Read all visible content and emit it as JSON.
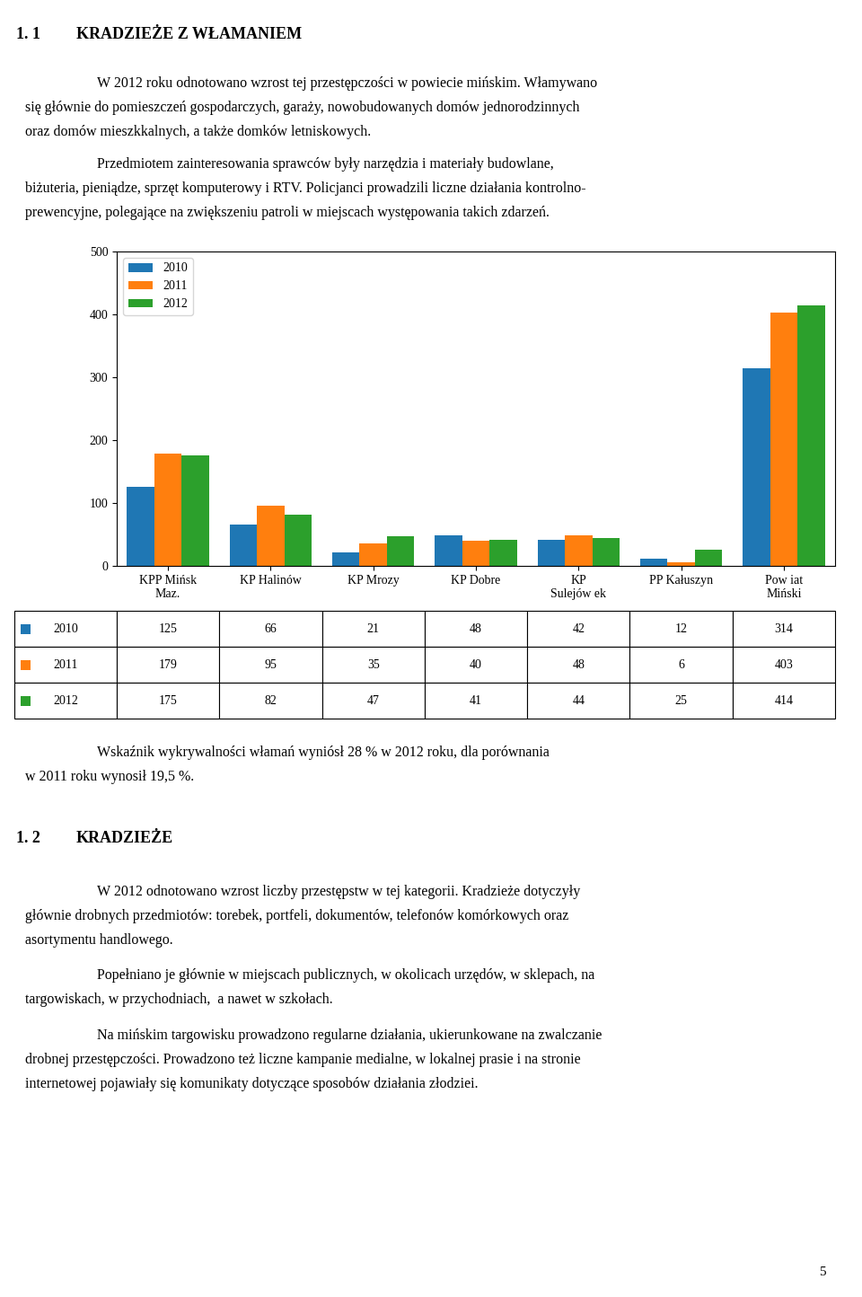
{
  "chart_data": {
    "type": "bar",
    "categories": [
      "KPP Mińsk\nMaz.",
      "KP Halinów",
      "KP Mrozy",
      "KP Dobre",
      "KP\nSulejów ek",
      "PP Kałuszyn",
      "Pow iat\nMiński"
    ],
    "series": [
      {
        "name": "2010",
        "values": [
          125,
          66,
          21,
          48,
          42,
          12,
          314
        ]
      },
      {
        "name": "2011",
        "values": [
          179,
          95,
          35,
          40,
          48,
          6,
          403
        ]
      },
      {
        "name": "2012",
        "values": [
          175,
          82,
          47,
          41,
          44,
          25,
          414
        ]
      }
    ],
    "ylim": [
      0,
      500
    ],
    "yticks": [
      0,
      100,
      200,
      300,
      400,
      500
    ],
    "grid": false,
    "legend": "upper left",
    "annotations": [
      "1. 1",
      "KRADZIEŻE Z WŁAMANIEM",
      "W 2012 roku odnotowano wzrost tej przestępczości w powiecie mińskim. Włamywano",
      "się głównie do pomieszczeń gospodarczych, garaży, nowobudowanych domów jednorodzinnych",
      "oraz domów mieszkkalnych, a także domków letniskowych.",
      "Przedmiotem zainteresowania sprawców były narzędzia i materiały budowlane,",
      "biżuteria, pieniądze, sprzęt komputerowy i RTV. Policjanci prowadzili liczne działania kontrolno-",
      "prewencyjne, polegające na zwiększeniu patroli w miejscach występowania takich zdarzeń.",
      "Wskaźnik wykrywalności włamań wyniósł 28 % w 2012 roku, dla porównania",
      "w 2011 roku wynosił 19,5 %.",
      "1. 2",
      "KRADZIEŻE",
      "W 2012 odnotowano wzrost liczby przestępstw w tej kategorii. Kradzieże dotyczyły",
      "głównie drobnych przedmiotów: torebek, portfeli, dokumentów, telefonów komórkowych oraz",
      "asortymentu handlowego.",
      "Popełniano je głównie w miejscach publicznych, w okolicach urzędów, w sklepach, na",
      "targowiskach, w przychodniach,  a nawet w szkołach.",
      "Na mińskim targowisku prowadzono regularne działania, ukierunkowane na zwalczanie",
      "drobnej przestępczości. Prowadzono też liczne kampanie medialne, w lokalnej prasie i na stronie",
      "internetowej pojawiały się komunikaty dotyczące sposobów działania złodziei.",
      "5"
    ]
  }
}
